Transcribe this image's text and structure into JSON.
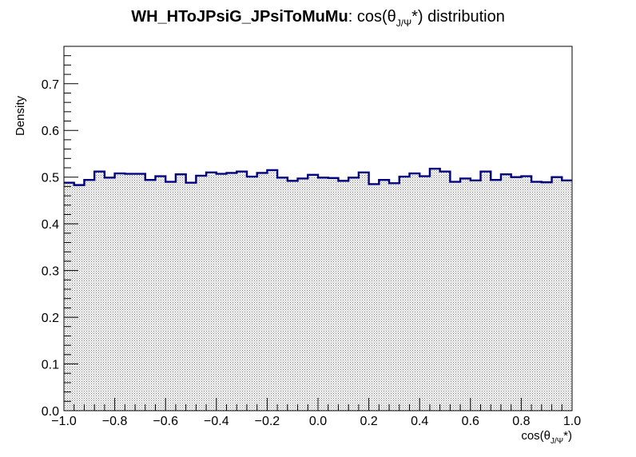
{
  "chart_data": {
    "type": "histogram",
    "title": {
      "bold": "WH_HToJPsiG_JPsiToMuMu",
      "rest_prefix": ": cos(θ",
      "rest_sub": "J/Ψ",
      "rest_suffix": "*) distribution"
    },
    "xlabel": {
      "prefix": "cos(θ",
      "sub": "J/Ψ",
      "suffix": "*)"
    },
    "ylabel": "Density",
    "xlim": [
      -1.0,
      1.0
    ],
    "ylim": [
      0.0,
      0.78
    ],
    "x_ticks": [
      "−1.0",
      "−0.8",
      "−0.6",
      "−0.4",
      "−0.2",
      "0.0",
      "0.2",
      "0.4",
      "0.6",
      "0.8",
      "1.0"
    ],
    "x_tick_values": [
      -1.0,
      -0.8,
      -0.6,
      -0.4,
      -0.2,
      0.0,
      0.2,
      0.4,
      0.6,
      0.8,
      1.0
    ],
    "y_ticks": [
      "0.0",
      "0.1",
      "0.2",
      "0.3",
      "0.4",
      "0.5",
      "0.6",
      "0.7"
    ],
    "y_tick_values": [
      0.0,
      0.1,
      0.2,
      0.3,
      0.4,
      0.5,
      0.6,
      0.7
    ],
    "bin_edges_start": -1.0,
    "bin_width": 0.04,
    "values": [
      0.488,
      0.483,
      0.494,
      0.512,
      0.499,
      0.508,
      0.507,
      0.507,
      0.494,
      0.502,
      0.49,
      0.506,
      0.488,
      0.503,
      0.51,
      0.507,
      0.509,
      0.512,
      0.501,
      0.509,
      0.515,
      0.499,
      0.492,
      0.497,
      0.505,
      0.499,
      0.498,
      0.492,
      0.499,
      0.51,
      0.485,
      0.494,
      0.487,
      0.501,
      0.508,
      0.502,
      0.518,
      0.512,
      0.49,
      0.497,
      0.493,
      0.512,
      0.494,
      0.506,
      0.5,
      0.502,
      0.49,
      0.489,
      0.5,
      0.493
    ],
    "line_color": "#000080",
    "fill_pattern": "dots",
    "grid": false
  }
}
